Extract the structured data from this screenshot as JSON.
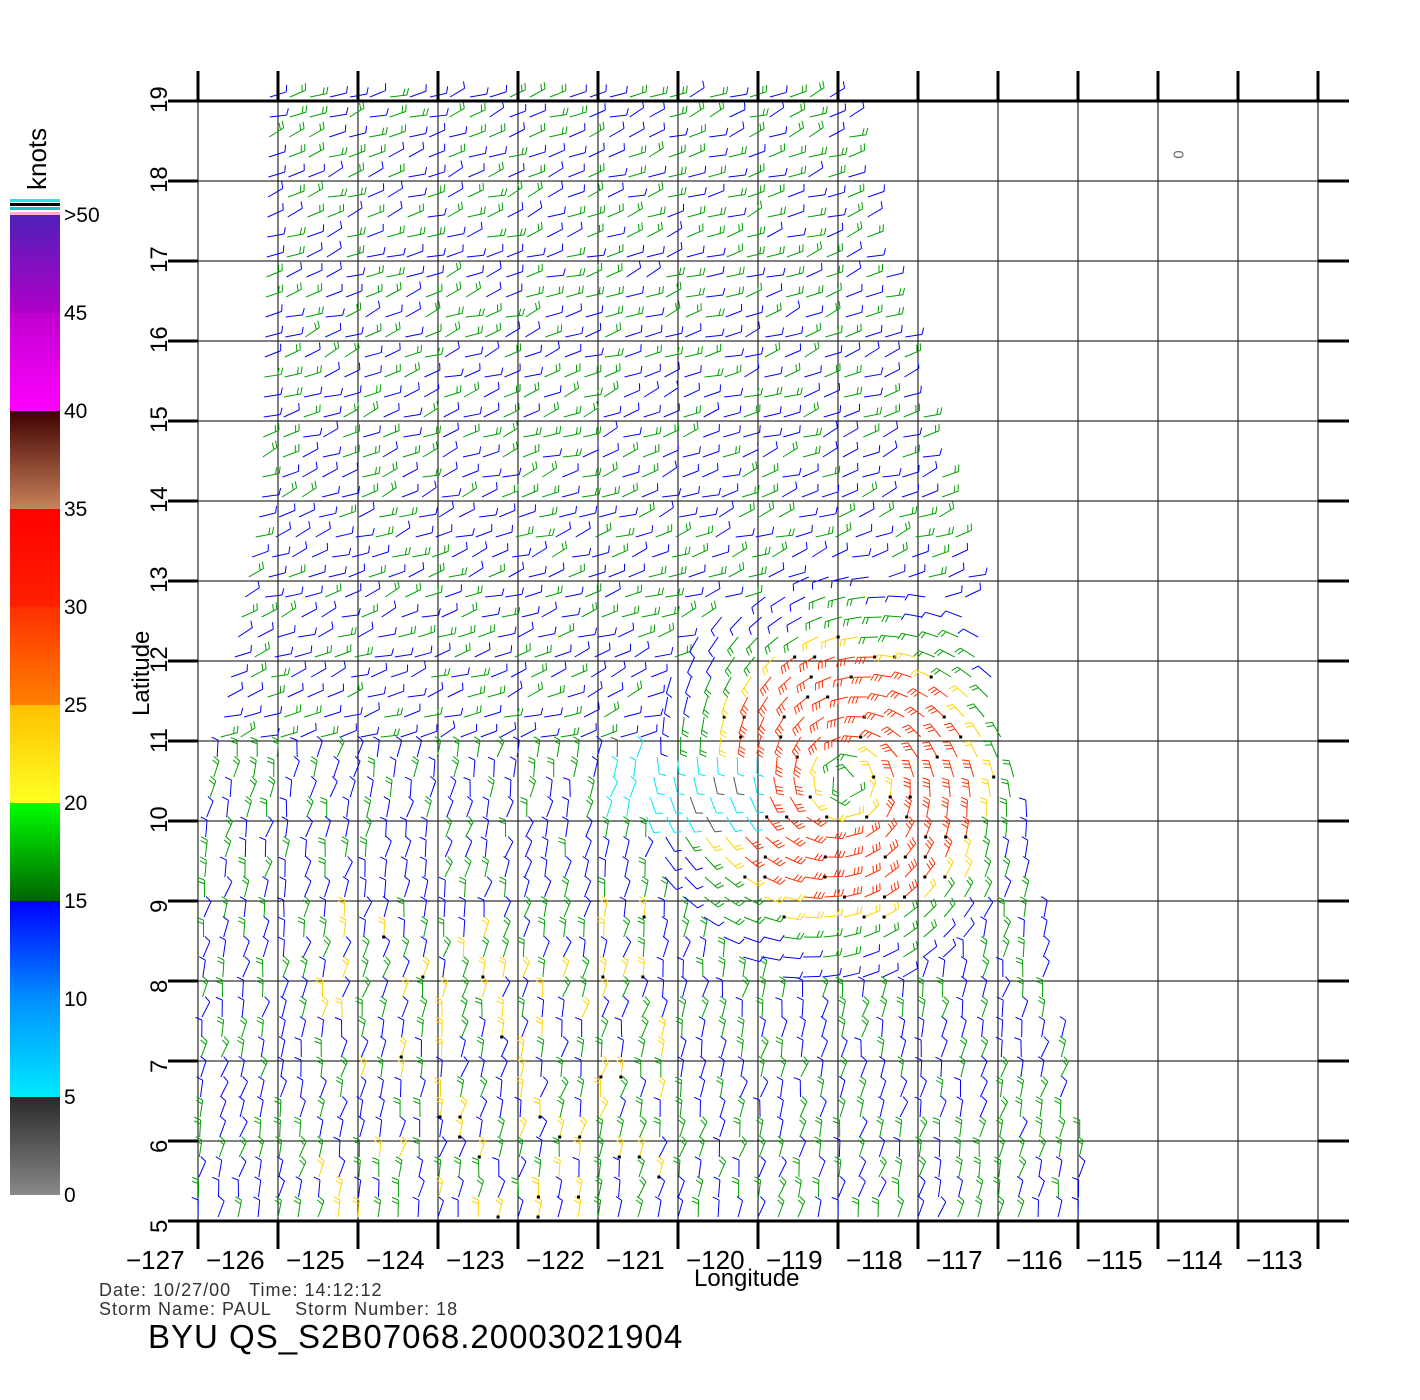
{
  "colorbar": {
    "unit": "knots",
    "labels": [
      {
        "text": "0",
        "value": 0
      },
      {
        "text": "5",
        "value": 5
      },
      {
        "text": "10",
        "value": 10
      },
      {
        "text": "15",
        "value": 15
      },
      {
        "text": "20",
        "value": 20
      },
      {
        "text": "25",
        "value": 25
      },
      {
        "text": "30",
        "value": 30
      },
      {
        "text": "35",
        "value": 35
      },
      {
        "text": "40",
        "value": 40
      },
      {
        "text": "45",
        "value": 45
      },
      {
        "text": ">50",
        "value": 50
      }
    ],
    "colors": {
      "calm": "#555555",
      "light": "#00e5ff",
      "moderate": "#0000ff",
      "fresh": "#00a000",
      "strong": "#ffd400",
      "gale": "#ff3000",
      "storm": "#8b4513",
      "violent": "#a000c0"
    }
  },
  "axes": {
    "xlabel": "Longitude",
    "ylabel": "Latitude",
    "lon_ticks": [
      "-127",
      "-126",
      "-125",
      "-124",
      "-123",
      "-122",
      "-121",
      "-120",
      "-119",
      "-118",
      "-117",
      "-116",
      "-115",
      "-114",
      "-113"
    ],
    "lat_ticks": [
      "5",
      "6",
      "7",
      "8",
      "9",
      "10",
      "11",
      "12",
      "13",
      "14",
      "15",
      "16",
      "17",
      "18",
      "19"
    ],
    "lon_range": [
      -127,
      -113
    ],
    "lat_range": [
      5,
      19
    ],
    "grid": true
  },
  "wind_field": {
    "swath_edges": [
      {
        "lat": 19,
        "lon_west": -126.1,
        "lon_east": -118.9
      },
      {
        "lat": 14,
        "lon_west": -126.2,
        "lon_east": -117.6
      },
      {
        "lat": 10,
        "lon_west": -126.9,
        "lon_east": -116.6
      },
      {
        "lat": 5,
        "lon_west": -127.0,
        "lon_east": -115.8
      }
    ],
    "storm_center": {
      "lat": 10.5,
      "lon": -118.9,
      "max_wind_knots": 32
    }
  },
  "marker": {
    "text": "0",
    "lat": 18.2,
    "lon": -114.7
  },
  "footer": {
    "date_label": "Date:",
    "date": "10/27/00",
    "time_label": "Time:",
    "time": "14:12:12",
    "storm_name_label": "Storm  Name:",
    "storm_name": "PAUL",
    "storm_number_label": "Storm  Number:",
    "storm_number": "18",
    "file_id": "BYU  QS_S2B07068.20003021904"
  }
}
